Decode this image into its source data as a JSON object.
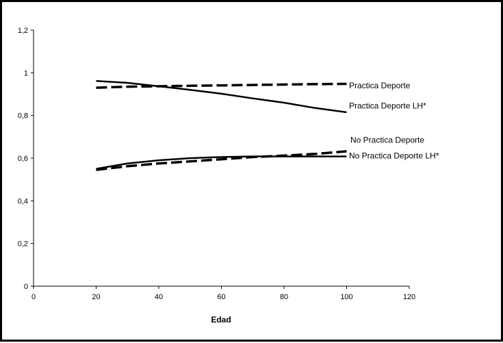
{
  "chart_data": {
    "type": "line",
    "title": "",
    "xlabel": "Edad",
    "ylabel": "",
    "xlim": [
      0,
      120
    ],
    "ylim": [
      0,
      1.2
    ],
    "x_ticks": [
      "0",
      "20",
      "40",
      "60",
      "80",
      "100",
      "120"
    ],
    "y_ticks": [
      "0",
      "0,2",
      "0,4",
      "0,6",
      "0,8",
      "1",
      "1,2"
    ],
    "grid": false,
    "legend": "inline-right",
    "series": [
      {
        "name": "Practica Deporte",
        "style": "dashed",
        "x": [
          20,
          30,
          40,
          50,
          60,
          70,
          80,
          90,
          100
        ],
        "y": [
          0.93,
          0.935,
          0.937,
          0.939,
          0.941,
          0.943,
          0.945,
          0.947,
          0.948
        ]
      },
      {
        "name": "Practica Deporte LH*",
        "style": "solid",
        "x": [
          20,
          30,
          40,
          50,
          60,
          70,
          80,
          90,
          100
        ],
        "y": [
          0.962,
          0.953,
          0.937,
          0.92,
          0.902,
          0.88,
          0.86,
          0.835,
          0.815
        ]
      },
      {
        "name": "No Practica Deporte",
        "style": "dashed",
        "x": [
          20,
          30,
          40,
          50,
          60,
          70,
          80,
          90,
          100
        ],
        "y": [
          0.545,
          0.562,
          0.575,
          0.585,
          0.595,
          0.605,
          0.612,
          0.62,
          0.632
        ]
      },
      {
        "name": "No Practica Deporte LH*",
        "style": "solid",
        "x": [
          20,
          30,
          40,
          50,
          60,
          70,
          80,
          90,
          100
        ],
        "y": [
          0.55,
          0.575,
          0.59,
          0.6,
          0.605,
          0.608,
          0.608,
          0.608,
          0.608
        ]
      }
    ]
  },
  "series_label_positions_y": [
    0.94,
    0.845,
    0.685,
    0.612
  ],
  "colors": {
    "line": "#000000",
    "axis": "#000000",
    "frame": "#000000",
    "background": "#ffffff"
  }
}
